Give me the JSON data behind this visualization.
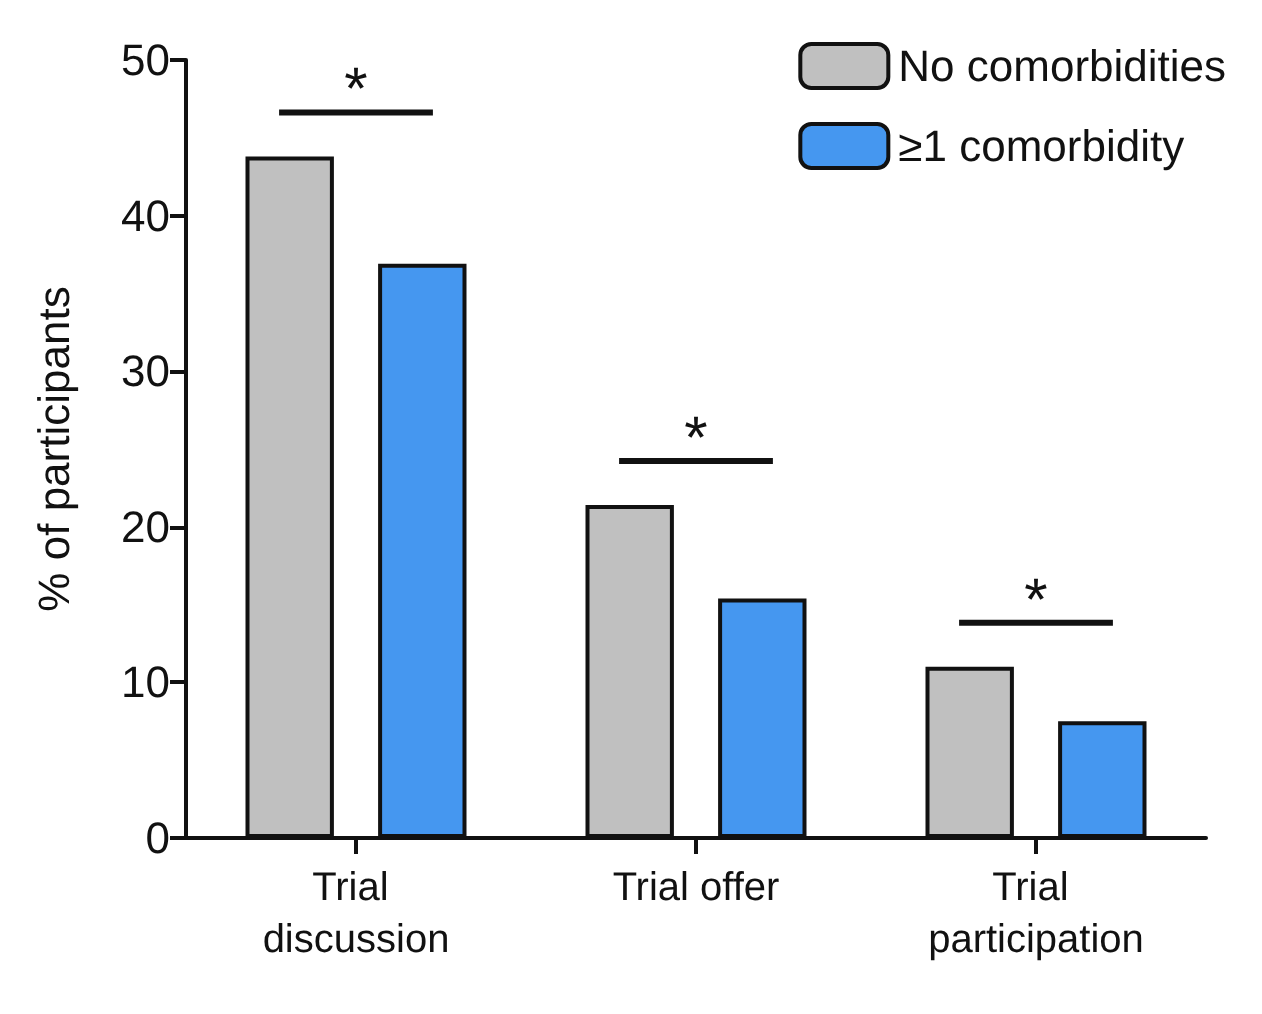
{
  "chart_data": {
    "type": "bar",
    "ylabel": "% of participants",
    "categories": [
      "Trial discussion",
      "Trial offer",
      "Trial participation"
    ],
    "series": [
      {
        "name": "No comorbidities",
        "color": "#c0c0c0",
        "values": [
          43.8,
          21.4,
          11.0
        ]
      },
      {
        "name": "≥1 comorbidity",
        "color": "#4597f0",
        "values": [
          36.9,
          15.4,
          7.5
        ]
      }
    ],
    "ylim": [
      0,
      50
    ],
    "yticks": [
      0,
      10,
      20,
      30,
      40,
      50
    ],
    "grid": false,
    "legend": "top right",
    "annotations": [
      "*",
      "*",
      "*"
    ]
  }
}
